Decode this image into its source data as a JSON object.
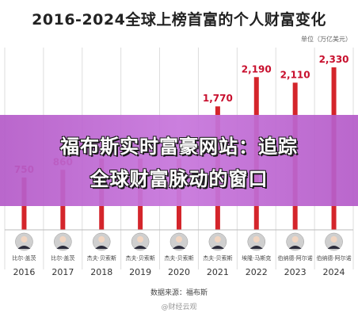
{
  "chart_data": {
    "type": "bar",
    "title": "2016-2024全球上榜首富的个人财富变化",
    "unit": "单位（万亿美元）",
    "categories": [
      "2016",
      "2017",
      "2018",
      "2019",
      "2020",
      "2021",
      "2022",
      "2023",
      "2024"
    ],
    "people": [
      "比尔·盖茨",
      "比尔·盖茨",
      "杰夫·贝索斯",
      "杰夫·贝索斯",
      "杰夫·贝索斯",
      "杰夫·贝索斯",
      "埃隆·马斯克",
      "伯纳德·阿尔诺",
      "伯纳德·阿尔诺"
    ],
    "values": [
      750,
      860,
      null,
      null,
      null,
      1770,
      2190,
      2110,
      2330
    ],
    "value_labels": [
      "750",
      "860",
      "",
      "",
      "",
      "1,770",
      "2,190",
      "2,110",
      "2,330"
    ],
    "ylim": [
      0,
      2500
    ],
    "colors": {
      "bar": "#d4252b",
      "value": "#c8102e",
      "grid": "#dddddd"
    },
    "source": "数据来源：福布斯"
  },
  "overlay": {
    "line1": "福布斯实时富豪网站：追踪",
    "line2": "全球财富脉动的窗口"
  },
  "watermark": "@财经云观"
}
